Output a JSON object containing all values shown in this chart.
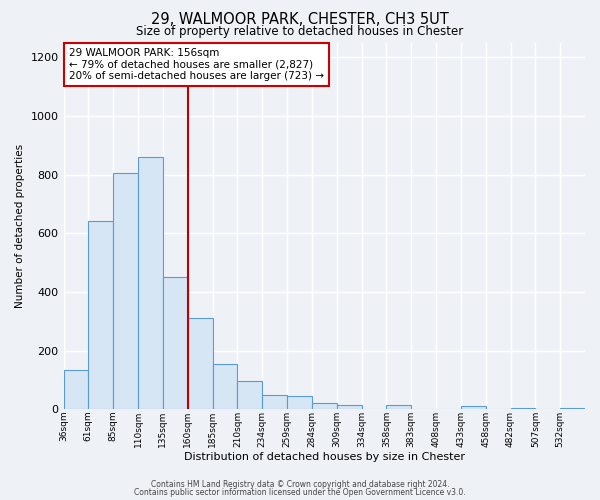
{
  "title": "29, WALMOOR PARK, CHESTER, CH3 5UT",
  "subtitle": "Size of property relative to detached houses in Chester",
  "xlabel": "Distribution of detached houses by size in Chester",
  "ylabel": "Number of detached properties",
  "bin_labels": [
    "36sqm",
    "61sqm",
    "85sqm",
    "110sqm",
    "135sqm",
    "160sqm",
    "185sqm",
    "210sqm",
    "234sqm",
    "259sqm",
    "284sqm",
    "309sqm",
    "334sqm",
    "358sqm",
    "383sqm",
    "408sqm",
    "433sqm",
    "458sqm",
    "482sqm",
    "507sqm",
    "532sqm"
  ],
  "bar_values": [
    135,
    640,
    805,
    860,
    450,
    310,
    155,
    95,
    50,
    45,
    20,
    15,
    0,
    15,
    0,
    0,
    10,
    0,
    5,
    0,
    5
  ],
  "bar_color": "#d6e6f5",
  "bar_edge_color": "#5b9bd5",
  "vline_x_index": 5,
  "vline_color": "#c00000",
  "annotation_title": "29 WALMOOR PARK: 156sqm",
  "annotation_line1": "← 79% of detached houses are smaller (2,827)",
  "annotation_line2": "20% of semi-detached houses are larger (723) →",
  "annotation_box_facecolor": "#ffffff",
  "annotation_box_edgecolor": "#cc0000",
  "ylim": [
    0,
    1250
  ],
  "yticks": [
    0,
    200,
    400,
    600,
    800,
    1000,
    1200
  ],
  "footer1": "Contains HM Land Registry data © Crown copyright and database right 2024.",
  "footer2": "Contains public sector information licensed under the Open Government Licence v3.0.",
  "bg_color": "#eef2f7",
  "grid_color": "#ffffff",
  "spine_color": "#cccccc"
}
